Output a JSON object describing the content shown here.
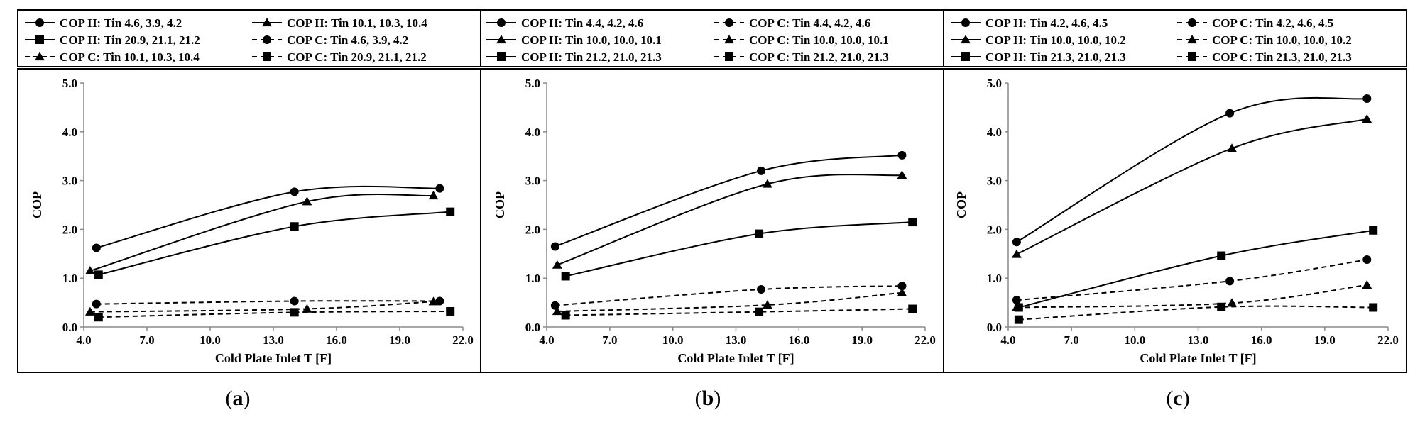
{
  "figure": {
    "captions": [
      {
        "open": "(",
        "letter": "a",
        "close": ")"
      },
      {
        "open": "(",
        "letter": "b",
        "close": ")"
      },
      {
        "open": "(",
        "letter": "c",
        "close": ")"
      }
    ]
  },
  "chart_data": [
    {
      "type": "line",
      "panel": "a",
      "xlabel": "Cold Plate Inlet T [F]",
      "ylabel": "COP",
      "xlim": [
        4.0,
        22.0
      ],
      "ylim": [
        0.0,
        5.0
      ],
      "xticks": [
        "4.0",
        "7.0",
        "10.0",
        "13.0",
        "16.0",
        "19.0",
        "22.0"
      ],
      "yticks": [
        "0.0",
        "1.0",
        "2.0",
        "3.0",
        "4.0",
        "5.0"
      ],
      "legend_columns": 2,
      "series": [
        {
          "name": "COP H: Tin 4.6, 3.9, 4.2",
          "marker": "circle",
          "dash": "solid",
          "x": [
            4.6,
            14.0,
            20.9
          ],
          "y": [
            1.62,
            2.77,
            2.84
          ]
        },
        {
          "name": "COP H: Tin 10.1, 10.3, 10.4",
          "marker": "triangle",
          "dash": "solid",
          "x": [
            4.3,
            14.6,
            20.6
          ],
          "y": [
            1.15,
            2.57,
            2.69
          ]
        },
        {
          "name": "COP H: Tin 20.9, 21.1, 21.2",
          "marker": "square",
          "dash": "solid",
          "x": [
            4.7,
            14.0,
            21.4
          ],
          "y": [
            1.07,
            2.06,
            2.36
          ]
        },
        {
          "name": "COP C: Tin 4.6, 3.9, 4.2",
          "marker": "circle",
          "dash": "dashed",
          "x": [
            4.6,
            14.0,
            20.9
          ],
          "y": [
            0.47,
            0.53,
            0.53
          ]
        },
        {
          "name": "COP C: Tin 10.1, 10.3, 10.4",
          "marker": "triangle",
          "dash": "dashed",
          "x": [
            4.3,
            14.6,
            20.6
          ],
          "y": [
            0.31,
            0.37,
            0.52
          ]
        },
        {
          "name": "COP C: Tin 20.9, 21.1, 21.2",
          "marker": "square",
          "dash": "dashed",
          "x": [
            4.7,
            14.0,
            21.4
          ],
          "y": [
            0.2,
            0.3,
            0.32
          ]
        }
      ]
    },
    {
      "type": "line",
      "panel": "b",
      "xlabel": "Cold Plate Inlet T [F]",
      "ylabel": "COP",
      "xlim": [
        4.0,
        22.0
      ],
      "ylim": [
        0.0,
        5.0
      ],
      "xticks": [
        "4.0",
        "7.0",
        "10.0",
        "13.0",
        "16.0",
        "19.0",
        "22.0"
      ],
      "yticks": [
        "0.0",
        "1.0",
        "2.0",
        "3.0",
        "4.0",
        "5.0"
      ],
      "legend_columns": 2,
      "series": [
        {
          "name": "COP H: Tin 4.4, 4.2, 4.6",
          "marker": "circle",
          "dash": "solid",
          "x": [
            4.4,
            14.2,
            20.9
          ],
          "y": [
            1.65,
            3.2,
            3.52
          ]
        },
        {
          "name": "COP C: Tin 4.4, 4.2, 4.6",
          "marker": "circle",
          "dash": "dashed",
          "x": [
            4.4,
            14.2,
            20.9
          ],
          "y": [
            0.44,
            0.77,
            0.84
          ]
        },
        {
          "name": "COP H: Tin 10.0, 10.0, 10.1",
          "marker": "triangle",
          "dash": "solid",
          "x": [
            4.5,
            14.5,
            20.9
          ],
          "y": [
            1.27,
            2.93,
            3.11
          ]
        },
        {
          "name": "COP C: Tin 10.0, 10.0, 10.1",
          "marker": "triangle",
          "dash": "dashed",
          "x": [
            4.5,
            14.5,
            20.9
          ],
          "y": [
            0.32,
            0.45,
            0.7
          ]
        },
        {
          "name": "COP H: Tin 21.2, 21.0, 21.3",
          "marker": "square",
          "dash": "solid",
          "x": [
            4.9,
            14.1,
            21.4
          ],
          "y": [
            1.04,
            1.91,
            2.15
          ]
        },
        {
          "name": "COP C: Tin 21.2, 21.0, 21.3",
          "marker": "square",
          "dash": "dashed",
          "x": [
            4.9,
            14.1,
            21.4
          ],
          "y": [
            0.24,
            0.31,
            0.37
          ]
        }
      ]
    },
    {
      "type": "line",
      "panel": "c",
      "xlabel": "Cold Plate Inlet T [F]",
      "ylabel": "COP",
      "xlim": [
        4.0,
        22.0
      ],
      "ylim": [
        0.0,
        5.0
      ],
      "xticks": [
        "4.0",
        "7.0",
        "10.0",
        "13.0",
        "16.0",
        "19.0",
        "22.0"
      ],
      "yticks": [
        "0.0",
        "1.0",
        "2.0",
        "3.0",
        "4.0",
        "5.0"
      ],
      "legend_columns": 2,
      "series": [
        {
          "name": "COP H: Tin 4.2, 4.6, 4.5",
          "marker": "circle",
          "dash": "solid",
          "x": [
            4.4,
            14.5,
            21.0
          ],
          "y": [
            1.74,
            4.38,
            4.68
          ]
        },
        {
          "name": "COP C: Tin 4.2, 4.6, 4.5",
          "marker": "circle",
          "dash": "dashed",
          "x": [
            4.4,
            14.5,
            21.0
          ],
          "y": [
            0.55,
            0.94,
            1.38
          ]
        },
        {
          "name": "COP H: Tin 10.0, 10.0, 10.2",
          "marker": "triangle",
          "dash": "solid",
          "x": [
            4.4,
            14.6,
            21.0
          ],
          "y": [
            1.49,
            3.66,
            4.26
          ]
        },
        {
          "name": "COP C: Tin 10.0, 10.0, 10.2",
          "marker": "triangle",
          "dash": "dashed",
          "x": [
            4.4,
            14.6,
            21.0
          ],
          "y": [
            0.4,
            0.49,
            0.86
          ]
        },
        {
          "name": "COP H: Tin 21.3, 21.0, 21.3",
          "marker": "square",
          "dash": "solid",
          "x": [
            4.5,
            14.1,
            21.3
          ],
          "y": [
            0.4,
            1.46,
            1.98
          ]
        },
        {
          "name": "COP C: Tin 21.3, 21.0, 21.3",
          "marker": "square",
          "dash": "dashed",
          "x": [
            4.5,
            14.1,
            21.3
          ],
          "y": [
            0.15,
            0.41,
            0.4
          ]
        }
      ]
    }
  ]
}
